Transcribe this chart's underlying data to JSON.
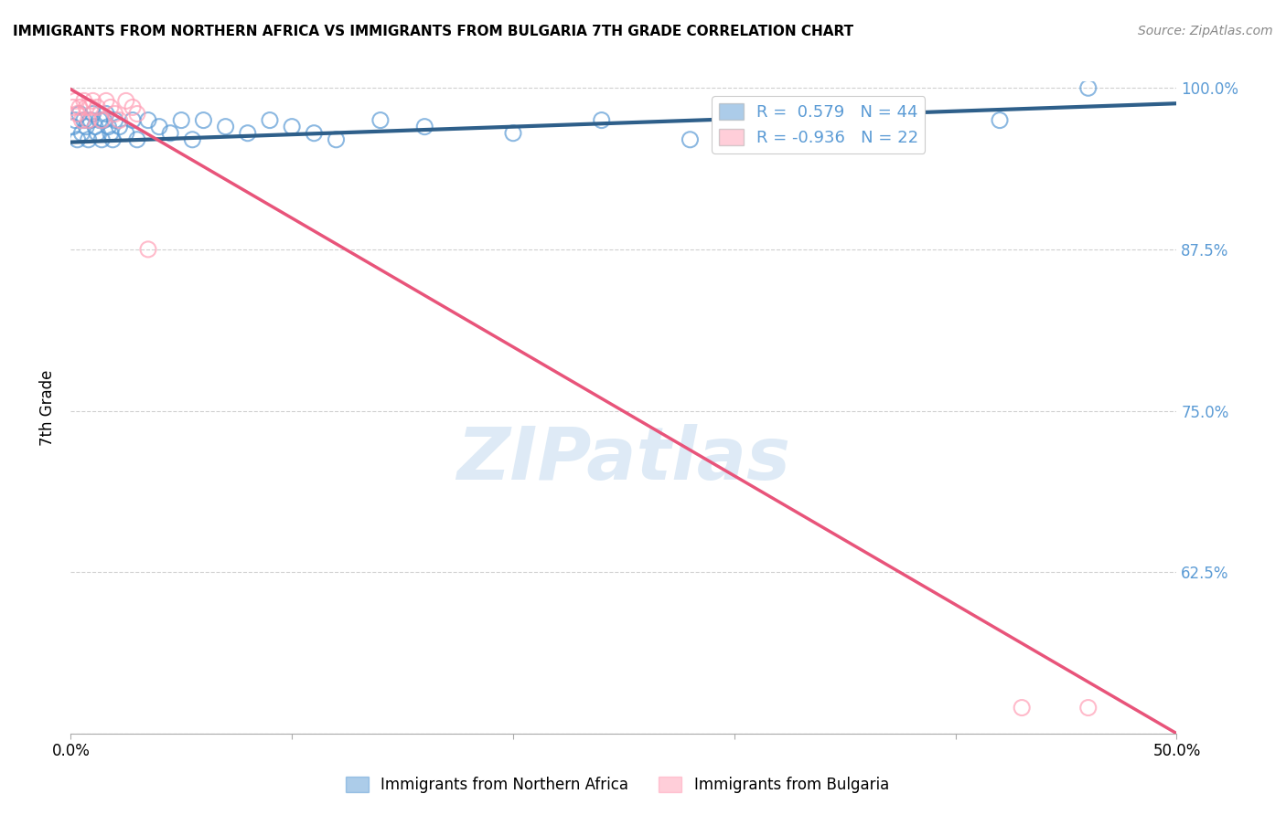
{
  "title": "IMMIGRANTS FROM NORTHERN AFRICA VS IMMIGRANTS FROM BULGARIA 7TH GRADE CORRELATION CHART",
  "source": "Source: ZipAtlas.com",
  "ylabel": "7th Grade",
  "xlim": [
    0.0,
    0.5
  ],
  "ylim": [
    0.5,
    1.005
  ],
  "xticks": [
    0.0,
    0.1,
    0.2,
    0.3,
    0.4,
    0.5
  ],
  "xticklabels": [
    "0.0%",
    "",
    "",
    "",
    "",
    "50.0%"
  ],
  "yticks": [
    0.5,
    0.625,
    0.75,
    0.875,
    1.0
  ],
  "yticklabels_right": [
    "",
    "62.5%",
    "75.0%",
    "87.5%",
    "100.0%"
  ],
  "blue_scatter_x": [
    0.001,
    0.002,
    0.003,
    0.004,
    0.005,
    0.006,
    0.007,
    0.008,
    0.009,
    0.01,
    0.011,
    0.012,
    0.013,
    0.014,
    0.015,
    0.016,
    0.017,
    0.018,
    0.019,
    0.02,
    0.022,
    0.025,
    0.028,
    0.03,
    0.035,
    0.04,
    0.045,
    0.05,
    0.055,
    0.06,
    0.07,
    0.08,
    0.09,
    0.1,
    0.11,
    0.12,
    0.14,
    0.16,
    0.2,
    0.24,
    0.28,
    0.32,
    0.42,
    0.46
  ],
  "blue_scatter_y": [
    0.97,
    0.975,
    0.96,
    0.98,
    0.965,
    0.975,
    0.97,
    0.96,
    0.975,
    0.98,
    0.97,
    0.965,
    0.975,
    0.96,
    0.975,
    0.98,
    0.97,
    0.965,
    0.96,
    0.975,
    0.97,
    0.965,
    0.975,
    0.96,
    0.975,
    0.97,
    0.965,
    0.975,
    0.96,
    0.975,
    0.97,
    0.965,
    0.975,
    0.97,
    0.965,
    0.96,
    0.975,
    0.97,
    0.965,
    0.975,
    0.96,
    0.97,
    0.975,
    1.0
  ],
  "pink_scatter_x": [
    0.001,
    0.002,
    0.003,
    0.004,
    0.005,
    0.006,
    0.007,
    0.008,
    0.009,
    0.01,
    0.012,
    0.014,
    0.016,
    0.018,
    0.02,
    0.022,
    0.025,
    0.028,
    0.03,
    0.035,
    0.43,
    0.46
  ],
  "pink_scatter_y": [
    0.985,
    0.99,
    0.98,
    0.985,
    0.975,
    0.99,
    0.985,
    0.975,
    0.985,
    0.99,
    0.985,
    0.975,
    0.99,
    0.985,
    0.98,
    0.975,
    0.99,
    0.985,
    0.98,
    0.875,
    0.52,
    0.52
  ],
  "blue_line_x": [
    0.0,
    0.5
  ],
  "blue_line_y": [
    0.958,
    0.988
  ],
  "pink_line_x": [
    0.0,
    0.5
  ],
  "pink_line_y": [
    0.999,
    0.5
  ],
  "blue_color": "#5b9bd5",
  "pink_color": "#ff9eb5",
  "blue_line_color": "#2e5f8a",
  "pink_line_color": "#e8547a",
  "legend_R_blue": "R =  0.579",
  "legend_N_blue": "N = 44",
  "legend_R_pink": "R = -0.936",
  "legend_N_pink": "N = 22",
  "legend_label_blue": "Immigrants from Northern Africa",
  "legend_label_pink": "Immigrants from Bulgaria",
  "watermark": "ZIPatlas",
  "background_color": "#ffffff",
  "grid_color": "#d0d0d0"
}
